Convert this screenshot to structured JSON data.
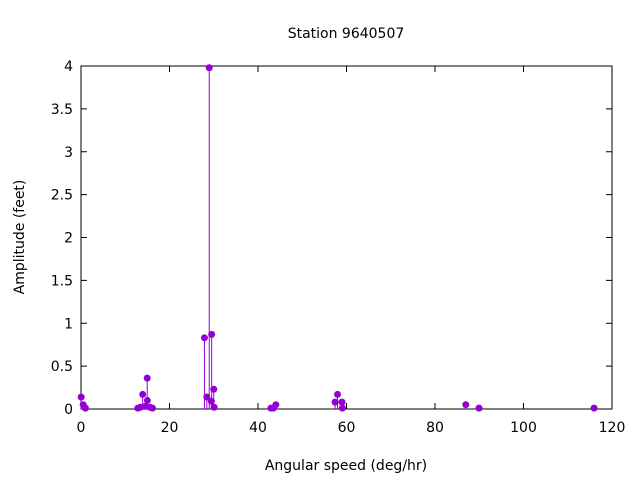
{
  "chart_data": {
    "type": "scatter",
    "style": "impulses-with-points",
    "title": "Station 9640507",
    "xlabel": "Angular speed (deg/hr)",
    "ylabel": "Amplitude (feet)",
    "xlim": [
      0,
      120
    ],
    "ylim": [
      0,
      4
    ],
    "xticks": [
      0,
      20,
      40,
      60,
      80,
      100,
      120
    ],
    "yticks": [
      0,
      0.5,
      1,
      1.5,
      2,
      2.5,
      3,
      3.5,
      4
    ],
    "xtick_labels": [
      "0",
      "20",
      "40",
      "60",
      "80",
      "100",
      "120"
    ],
    "ytick_labels": [
      "0",
      "0.5",
      "1",
      "1.5",
      "2",
      "2.5",
      "3",
      "3.5",
      "4"
    ],
    "grid": false,
    "legend": "none",
    "color": "#9400d3",
    "series": [
      {
        "x": [
          0.04,
          0.5,
          1.0,
          12.85,
          13.4,
          13.94,
          14.5,
          14.96,
          15.0,
          15.59,
          16.14,
          27.9,
          28.44,
          28.98,
          29.46,
          29.53,
          30.0,
          30.08,
          42.93,
          43.48,
          44.03,
          57.42,
          57.97,
          58.98,
          59.07,
          86.95,
          89.95,
          115.94
        ],
        "y": [
          0.14,
          0.05,
          0.01,
          0.01,
          0.02,
          0.17,
          0.03,
          0.36,
          0.1,
          0.02,
          0.01,
          0.83,
          0.14,
          3.98,
          0.09,
          0.87,
          0.23,
          0.02,
          0.01,
          0.01,
          0.05,
          0.08,
          0.17,
          0.08,
          0.01,
          0.05,
          0.01,
          0.01
        ]
      }
    ]
  }
}
